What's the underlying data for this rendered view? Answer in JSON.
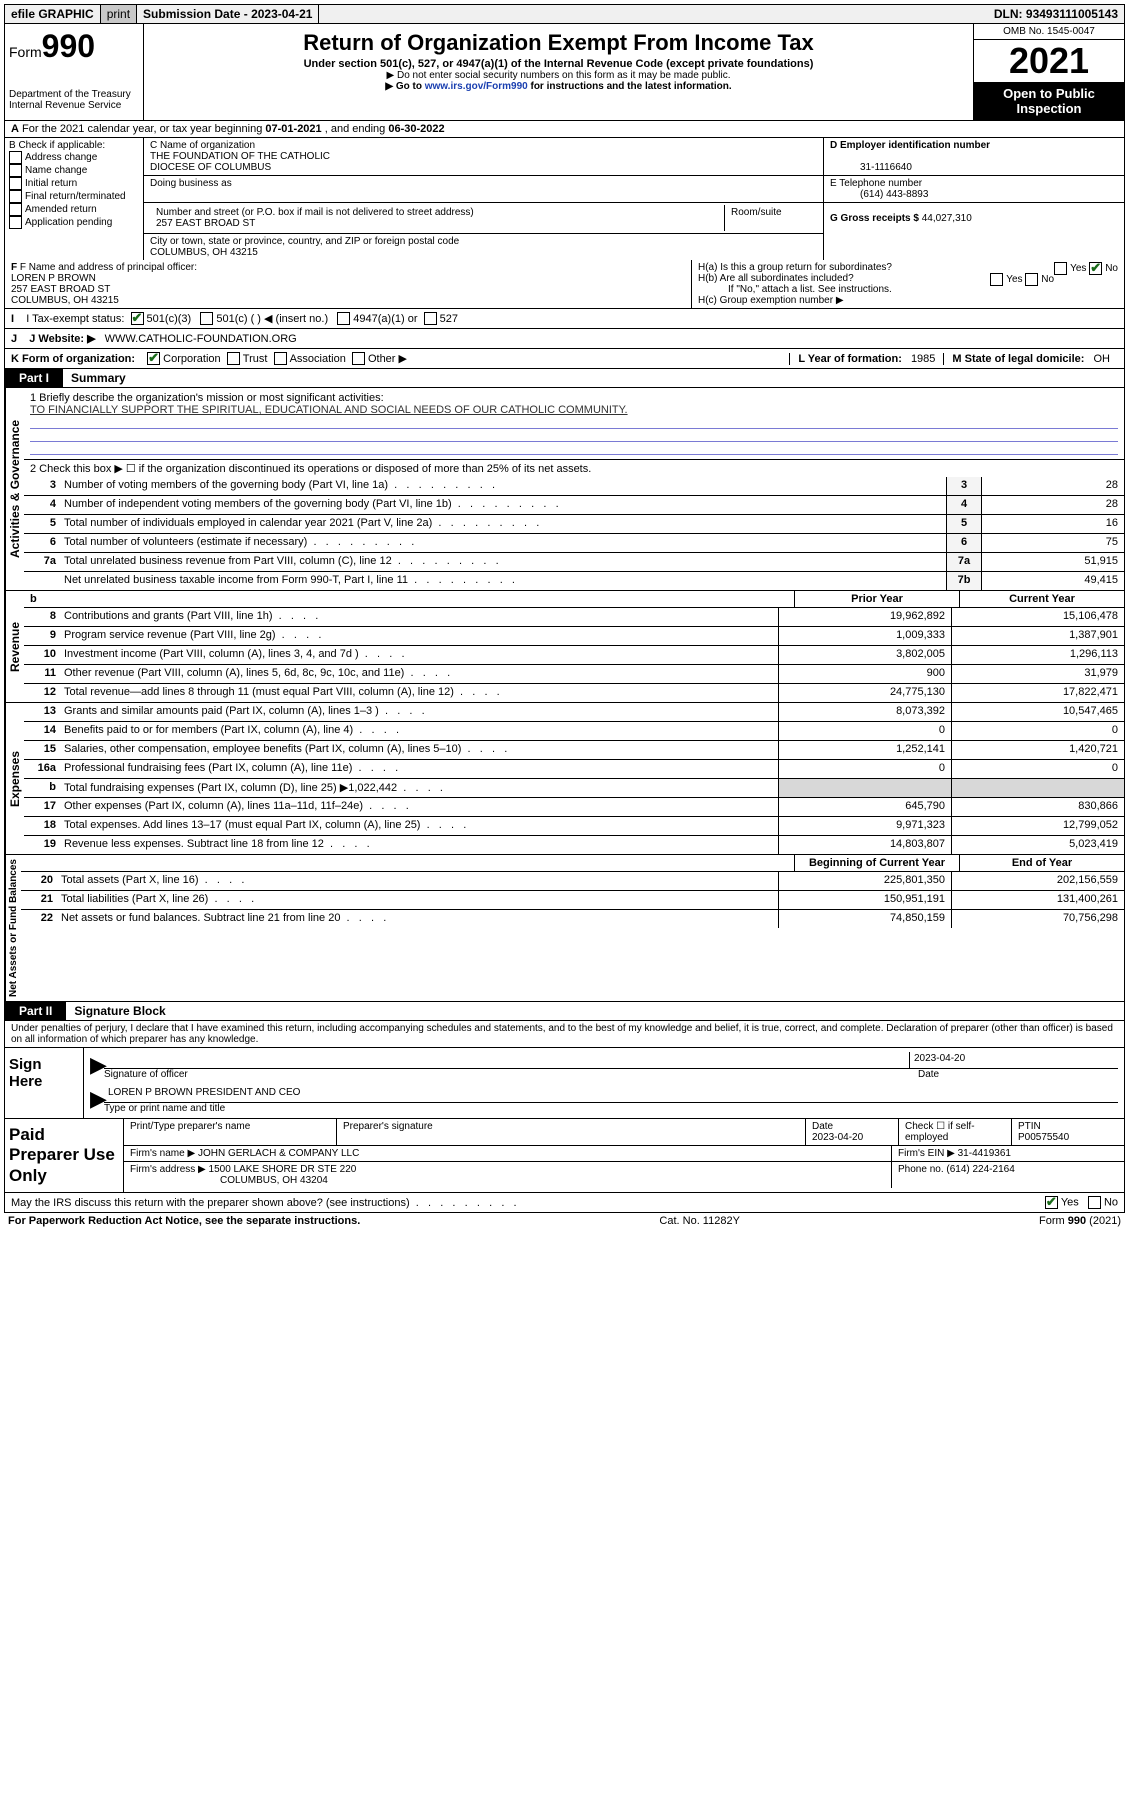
{
  "top": {
    "efile": "efile GRAPHIC",
    "print": "print",
    "sub_label": "Submission Date - ",
    "sub_date": "2023-04-21",
    "dln_label": "DLN: ",
    "dln": "93493111005143"
  },
  "header": {
    "form_prefix": "Form",
    "form_num": "990",
    "dept": "Department of the Treasury",
    "irs": "Internal Revenue Service",
    "title": "Return of Organization Exempt From Income Tax",
    "sub": "Under section 501(c), 527, or 4947(a)(1) of the Internal Revenue Code (except private foundations)",
    "note1": "▶ Do not enter social security numbers on this form as it may be made public.",
    "note2_pre": "▶ Go to ",
    "note2_link": "www.irs.gov/Form990",
    "note2_post": " for instructions and the latest information.",
    "omb": "OMB No. 1545-0047",
    "year": "2021",
    "open": "Open to Public Inspection"
  },
  "rowA": {
    "prefix": "A",
    "text": "For the 2021 calendar year, or tax year beginning ",
    "begin": "07-01-2021",
    "mid": " , and ending ",
    "end": "06-30-2022"
  },
  "colB": {
    "head": "B Check if applicable:",
    "opts": [
      "Address change",
      "Name change",
      "Initial return",
      "Final return/terminated",
      "Amended return",
      "Application pending"
    ]
  },
  "colC": {
    "name_label": "C Name of organization",
    "name1": "THE FOUNDATION OF THE CATHOLIC",
    "name2": "DIOCESE OF COLUMBUS",
    "dba": "Doing business as",
    "street_label": "Number and street (or P.O. box if mail is not delivered to street address)",
    "room_label": "Room/suite",
    "street": "257 EAST BROAD ST",
    "city_label": "City or town, state or province, country, and ZIP or foreign postal code",
    "city": "COLUMBUS, OH  43215"
  },
  "colD": {
    "d_label": "D Employer identification number",
    "ein": "31-1116640",
    "e_label": "E Telephone number",
    "phone": "(614) 443-8893",
    "g_label": "G Gross receipts $ ",
    "gross": "44,027,310"
  },
  "rowF": {
    "f_label": "F  Name and address of principal officer:",
    "f_name": "LOREN P BROWN",
    "f_street": "257 EAST BROAD ST",
    "f_city": "COLUMBUS, OH  43215",
    "ha": "H(a)  Is this a group return for subordinates?",
    "hb": "H(b)  Are all subordinates included?",
    "hb_note": "If \"No,\" attach a list. See instructions.",
    "hc": "H(c)  Group exemption number ▶",
    "yes": "Yes",
    "no": "No"
  },
  "rowI": {
    "label": "I   Tax-exempt status:",
    "o1": "501(c)(3)",
    "o2": "501(c) (  ) ◀ (insert no.)",
    "o3": "4947(a)(1) or",
    "o4": "527"
  },
  "rowJ": {
    "label": "J   Website: ▶ ",
    "url": "WWW.CATHOLIC-FOUNDATION.ORG"
  },
  "rowK": {
    "label": "K Form of organization:",
    "o1": "Corporation",
    "o2": "Trust",
    "o3": "Association",
    "o4": "Other ▶",
    "l_label": "L Year of formation: ",
    "l_val": "1985",
    "m_label": "M State of legal domicile: ",
    "m_val": "OH"
  },
  "part1": {
    "label": "Part I",
    "title": "Summary"
  },
  "mission": {
    "line1_label": "1   Briefly describe the organization's mission or most significant activities:",
    "text": "TO FINANCIALLY SUPPORT THE SPIRITUAL, EDUCATIONAL AND SOCIAL NEEDS OF OUR CATHOLIC COMMUNITY."
  },
  "gov": {
    "l2": "2    Check this box ▶ ☐  if the organization discontinued its operations or disposed of more than 25% of its net assets.",
    "rows": [
      {
        "n": "3",
        "label": "Number of voting members of the governing body (Part VI, line 1a)",
        "box": "3",
        "v": "28"
      },
      {
        "n": "4",
        "label": "Number of independent voting members of the governing body (Part VI, line 1b)",
        "box": "4",
        "v": "28"
      },
      {
        "n": "5",
        "label": "Total number of individuals employed in calendar year 2021 (Part V, line 2a)",
        "box": "5",
        "v": "16"
      },
      {
        "n": "6",
        "label": "Total number of volunteers (estimate if necessary)",
        "box": "6",
        "v": "75"
      },
      {
        "n": "7a",
        "label": "Total unrelated business revenue from Part VIII, column (C), line 12",
        "box": "7a",
        "v": "51,915"
      },
      {
        "n": "",
        "label": "Net unrelated business taxable income from Form 990-T, Part I, line 11",
        "box": "7b",
        "v": "49,415"
      }
    ]
  },
  "colheads": {
    "b": "b",
    "prior": "Prior Year",
    "curr": "Current Year",
    "boy": "Beginning of Current Year",
    "eoy": "End of Year"
  },
  "rev": [
    {
      "n": "8",
      "label": "Contributions and grants (Part VIII, line 1h)",
      "p": "19,962,892",
      "c": "15,106,478"
    },
    {
      "n": "9",
      "label": "Program service revenue (Part VIII, line 2g)",
      "p": "1,009,333",
      "c": "1,387,901"
    },
    {
      "n": "10",
      "label": "Investment income (Part VIII, column (A), lines 3, 4, and 7d )",
      "p": "3,802,005",
      "c": "1,296,113"
    },
    {
      "n": "11",
      "label": "Other revenue (Part VIII, column (A), lines 5, 6d, 8c, 9c, 10c, and 11e)",
      "p": "900",
      "c": "31,979"
    },
    {
      "n": "12",
      "label": "Total revenue—add lines 8 through 11 (must equal Part VIII, column (A), line 12)",
      "p": "24,775,130",
      "c": "17,822,471"
    }
  ],
  "exp": [
    {
      "n": "13",
      "label": "Grants and similar amounts paid (Part IX, column (A), lines 1–3 )",
      "p": "8,073,392",
      "c": "10,547,465"
    },
    {
      "n": "14",
      "label": "Benefits paid to or for members (Part IX, column (A), line 4)",
      "p": "0",
      "c": "0"
    },
    {
      "n": "15",
      "label": "Salaries, other compensation, employee benefits (Part IX, column (A), lines 5–10)",
      "p": "1,252,141",
      "c": "1,420,721"
    },
    {
      "n": "16a",
      "label": "Professional fundraising fees (Part IX, column (A), line 11e)",
      "p": "0",
      "c": "0"
    },
    {
      "n": "b",
      "label": "Total fundraising expenses (Part IX, column (D), line 25) ▶1,022,442",
      "p": "shade",
      "c": "shade"
    },
    {
      "n": "17",
      "label": "Other expenses (Part IX, column (A), lines 11a–11d, 11f–24e)",
      "p": "645,790",
      "c": "830,866"
    },
    {
      "n": "18",
      "label": "Total expenses. Add lines 13–17 (must equal Part IX, column (A), line 25)",
      "p": "9,971,323",
      "c": "12,799,052"
    },
    {
      "n": "19",
      "label": "Revenue less expenses. Subtract line 18 from line 12",
      "p": "14,803,807",
      "c": "5,023,419"
    }
  ],
  "net": [
    {
      "n": "20",
      "label": "Total assets (Part X, line 16)",
      "p": "225,801,350",
      "c": "202,156,559"
    },
    {
      "n": "21",
      "label": "Total liabilities (Part X, line 26)",
      "p": "150,951,191",
      "c": "131,400,261"
    },
    {
      "n": "22",
      "label": "Net assets or fund balances. Subtract line 21 from line 20",
      "p": "74,850,159",
      "c": "70,756,298"
    }
  ],
  "verts": {
    "gov": "Activities & Governance",
    "rev": "Revenue",
    "exp": "Expenses",
    "net": "Net Assets or Fund Balances"
  },
  "part2": {
    "label": "Part II",
    "title": "Signature Block"
  },
  "decl": "Under penalties of perjury, I declare that I have examined this return, including accompanying schedules and statements, and to the best of my knowledge and belief, it is true, correct, and complete. Declaration of preparer (other than officer) is based on all information of which preparer has any knowledge.",
  "sign": {
    "left": "Sign Here",
    "sig_of": "Signature of officer",
    "date_lbl": "Date",
    "date": "2023-04-20",
    "name": "LOREN P BROWN  PRESIDENT AND CEO",
    "name_lbl": "Type or print name and title"
  },
  "prep": {
    "left": "Paid Preparer Use Only",
    "h1": "Print/Type preparer's name",
    "h2": "Preparer's signature",
    "h3": "Date",
    "h4": "Check ☐ if self-employed",
    "h5": "PTIN",
    "date": "2023-04-20",
    "ptin": "P00575540",
    "firm_lbl": "Firm's name    ▶ ",
    "firm": "JOHN GERLACH & COMPANY LLC",
    "ein_lbl": "Firm's EIN ▶ ",
    "ein": "31-4419361",
    "addr_lbl": "Firm's address ▶ ",
    "addr1": "1500 LAKE SHORE DR STE 220",
    "addr2": "COLUMBUS, OH  43204",
    "phone_lbl": "Phone no. ",
    "phone": "(614) 224-2164"
  },
  "discuss": {
    "q": "May the IRS discuss this return with the preparer shown above? (see instructions)",
    "yes": "Yes",
    "no": "No"
  },
  "footer": {
    "left": "For Paperwork Reduction Act Notice, see the separate instructions.",
    "mid": "Cat. No. 11282Y",
    "right": "Form 990 (2021)"
  }
}
